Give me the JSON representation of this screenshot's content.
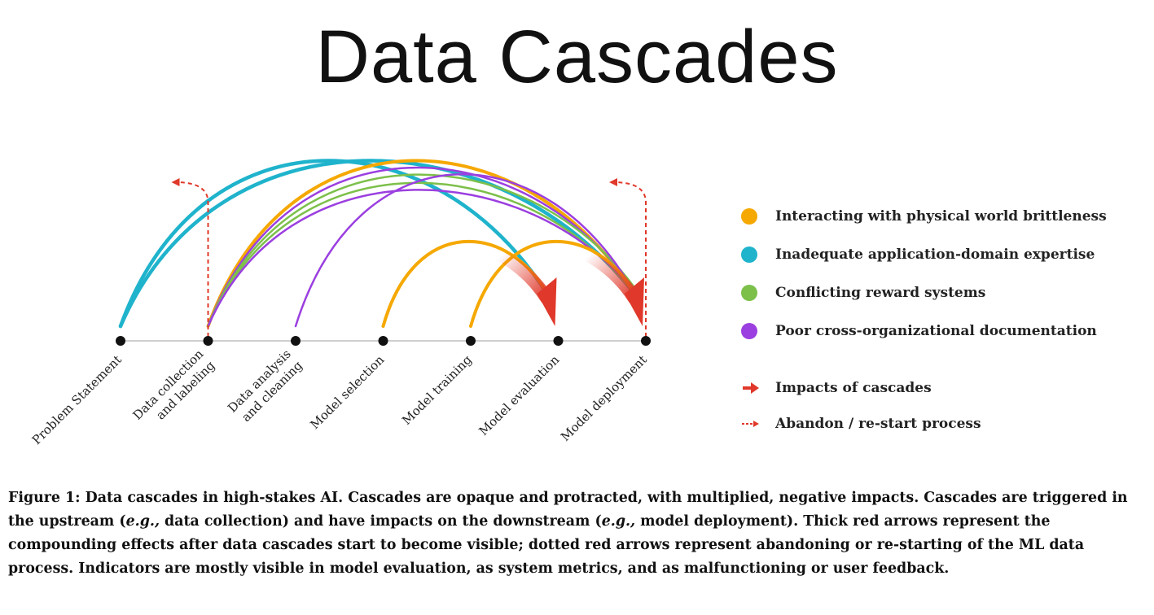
{
  "title": "Data Cascades",
  "stages": [
    {
      "lines": [
        "Problem Statement"
      ]
    },
    {
      "lines": [
        "Data collection",
        "and labeling"
      ]
    },
    {
      "lines": [
        "Data analysis",
        "and cleaning"
      ]
    },
    {
      "lines": [
        "Model selection"
      ]
    },
    {
      "lines": [
        "Model training"
      ]
    },
    {
      "lines": [
        "Model evaluation"
      ]
    },
    {
      "lines": [
        "Model deployment"
      ]
    }
  ],
  "colors": {
    "physical": "#f5a800",
    "domain": "#1fb3cc",
    "reward": "#7cc04a",
    "documentation": "#9b3fe0",
    "impact": "#e0382a",
    "restart": "#e0382a"
  },
  "cascades": [
    {
      "category": "domain",
      "from": 0,
      "to": 5
    },
    {
      "category": "domain",
      "from": 0,
      "to": 6
    },
    {
      "category": "physical",
      "from": 1,
      "to": 6
    },
    {
      "category": "documentation",
      "from": 1,
      "to": 6
    },
    {
      "category": "reward",
      "from": 1,
      "to": 6
    },
    {
      "category": "reward",
      "from": 1,
      "to": 6
    },
    {
      "category": "documentation",
      "from": 1,
      "to": 6
    },
    {
      "category": "documentation",
      "from": 2,
      "to": 6
    },
    {
      "category": "physical",
      "from": 3,
      "to": 5
    },
    {
      "category": "physical",
      "from": 4,
      "to": 6
    }
  ],
  "impacts": [
    5,
    6
  ],
  "restarts": [
    {
      "at": 1
    },
    {
      "at": 6
    }
  ],
  "legend": {
    "items": [
      {
        "key": "physical",
        "label": "Interacting with physical world brittleness",
        "icon": "orange-dot-icon"
      },
      {
        "key": "domain",
        "label": "Inadequate application-domain expertise",
        "icon": "teal-dot-icon"
      },
      {
        "key": "reward",
        "label": "Conflicting reward systems",
        "icon": "green-dot-icon"
      },
      {
        "key": "documentation",
        "label": "Poor cross-organizational documentation",
        "icon": "purple-dot-icon"
      }
    ],
    "impact_label": "Impacts of cascades",
    "restart_label": "Abandon / re-start process"
  },
  "caption": {
    "p1": "Figure 1: Data cascades in high-stakes AI. Cascades are opaque and protracted, with multiplied, negative impacts. Cascades are triggered in the upstream (",
    "eg1": "e.g.,",
    "p2": " data collection) and have impacts on the downstream (",
    "eg2": "e.g.,",
    "p3": " model deployment). Thick red arrows represent the compounding effects after data cascades start to become visible; dotted red arrows represent abandoning or re-starting of the ML data process. Indicators are mostly visible in model evaluation, as system metrics, and as malfunctioning or user feedback."
  }
}
